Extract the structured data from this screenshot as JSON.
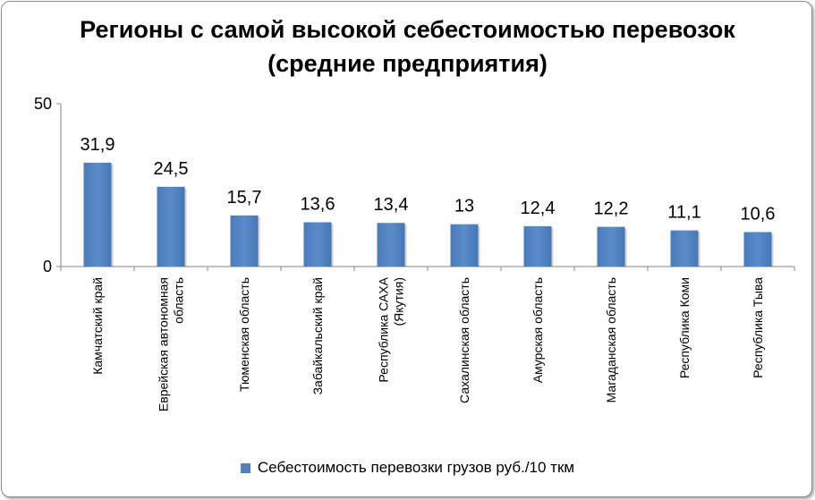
{
  "chart_data": {
    "type": "bar",
    "title_line1": "Регионы с самой высокой себестоимостью перевозок",
    "title_line2": "(средние  предприятия)",
    "categories": [
      "Камчатский край",
      "Еврейская автономная область",
      "Тюменская область",
      "Забайкальский край",
      "Республика САХА (Якутия)",
      "Сахалинская область",
      "Амурская область",
      "Магаданская область",
      "Республика Коми",
      "Республика Тыва"
    ],
    "category_lines": [
      [
        "Камчатский край"
      ],
      [
        "Еврейская автономная",
        "область"
      ],
      [
        "Тюменская область"
      ],
      [
        "Забайкальский край"
      ],
      [
        "Республика САХА",
        "(Якутия)"
      ],
      [
        "Сахалинская область"
      ],
      [
        "Амурская область"
      ],
      [
        "Магаданская область"
      ],
      [
        "Республика Коми"
      ],
      [
        "Республика Тыва"
      ]
    ],
    "series": [
      {
        "name": "Себестоимость перевозки грузов руб./10 ткм",
        "values": [
          31.9,
          24.5,
          15.7,
          13.6,
          13.4,
          13,
          12.4,
          12.2,
          11.1,
          10.6
        ],
        "labels": [
          "31,9",
          "24,5",
          "15,7",
          "13,6",
          "13,4",
          "13",
          "12,4",
          "12,2",
          "11,1",
          "10,6"
        ]
      }
    ],
    "ylim": [
      0,
      50
    ],
    "yticks": [
      "0",
      "50"
    ],
    "grid": false,
    "legend_position": "bottom",
    "bar_color": "#4f81bd"
  }
}
